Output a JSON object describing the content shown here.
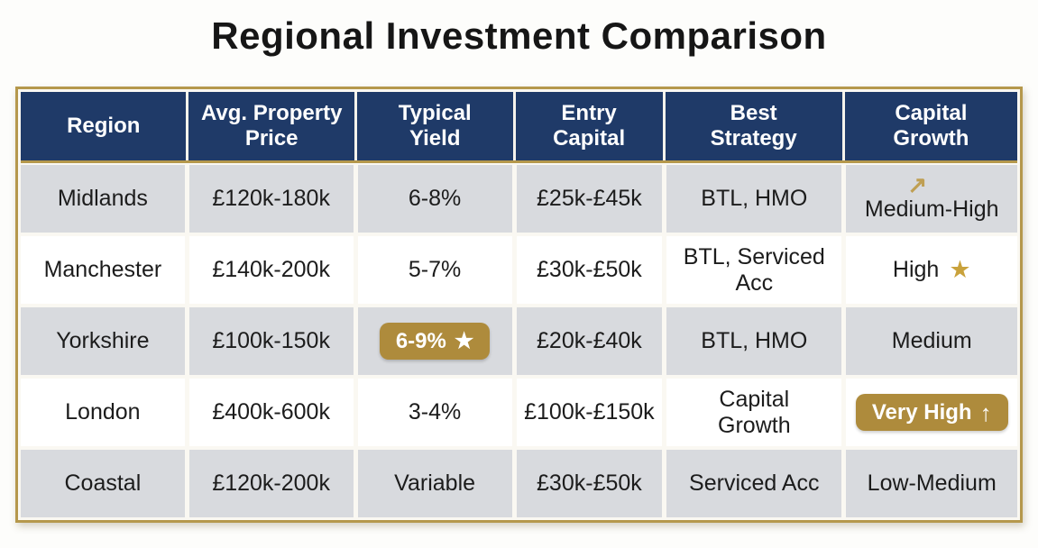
{
  "title": "Regional Investment Comparison",
  "colors": {
    "header_navy": "#1f3a68",
    "table_border_gold": "#b5984c",
    "badge_gold": "#ae8b3c",
    "row_gray": "#d8dade",
    "star_gold": "#c9a23c",
    "text_dark": "#1c1c1c"
  },
  "icons": {
    "star": "★",
    "arrow_up_right": "↗",
    "arrow_up": "↑"
  },
  "table": {
    "headers": {
      "region": "Region",
      "price": "Avg. Property\nPrice",
      "yield": "Typical\nYield",
      "entry": "Entry\nCapital",
      "strategy": "Best\nStrategy",
      "growth": "Capital\nGrowth"
    },
    "rows": [
      {
        "region": "Midlands",
        "price": "£120k-180k",
        "yield": "6-8%",
        "entry": "£25k-£45k",
        "strategy": "BTL, HMO",
        "growth": "Medium-High"
      },
      {
        "region": "Manchester",
        "price": "£140k-200k",
        "yield": "5-7%",
        "entry": "£30k-£50k",
        "strategy": "BTL, Serviced\nAcc",
        "growth": "High"
      },
      {
        "region": "Yorkshire",
        "price": "£100k-150k",
        "yield": "6-9%",
        "entry": "£20k-£40k",
        "strategy": "BTL, HMO",
        "growth": "Medium"
      },
      {
        "region": "London",
        "price": "£400k-600k",
        "yield": "3-4%",
        "entry": "£100k-£150k",
        "strategy": "Capital\nGrowth",
        "growth": "Very High"
      },
      {
        "region": "Coastal",
        "price": "£120k-200k",
        "yield": "Variable",
        "entry": "£30k-£50k",
        "strategy": "Serviced Acc",
        "growth": "Low-Medium"
      }
    ]
  },
  "chart_data": {
    "type": "table",
    "title": "Regional Investment Comparison",
    "columns": [
      "Region",
      "Avg. Property Price",
      "Typical Yield",
      "Entry Capital",
      "Best Strategy",
      "Capital Growth"
    ],
    "rows": [
      [
        "Midlands",
        "£120k-180k",
        "6-8%",
        "£25k-£45k",
        "BTL, HMO",
        "Medium-High"
      ],
      [
        "Manchester",
        "£140k-200k",
        "5-7%",
        "£30k-£50k",
        "BTL, Serviced Acc",
        "High"
      ],
      [
        "Yorkshire",
        "£100k-150k",
        "6-9%",
        "£20k-£40k",
        "BTL, HMO",
        "Medium"
      ],
      [
        "London",
        "£400k-600k",
        "3-4%",
        "£100k-£150k",
        "Capital Growth",
        "Very High"
      ],
      [
        "Coastal",
        "£120k-200k",
        "Variable",
        "£30k-£50k",
        "Serviced Acc",
        "Low-Medium"
      ]
    ],
    "annotations": [
      "Midlands Capital Growth marked with gold up-right arrow",
      "Manchester Capital Growth 'High' marked with gold star",
      "Yorkshire Typical Yield '6-9%' shown in gold badge with white star",
      "London Capital Growth 'Very High' shown in gold badge with up arrow"
    ]
  }
}
